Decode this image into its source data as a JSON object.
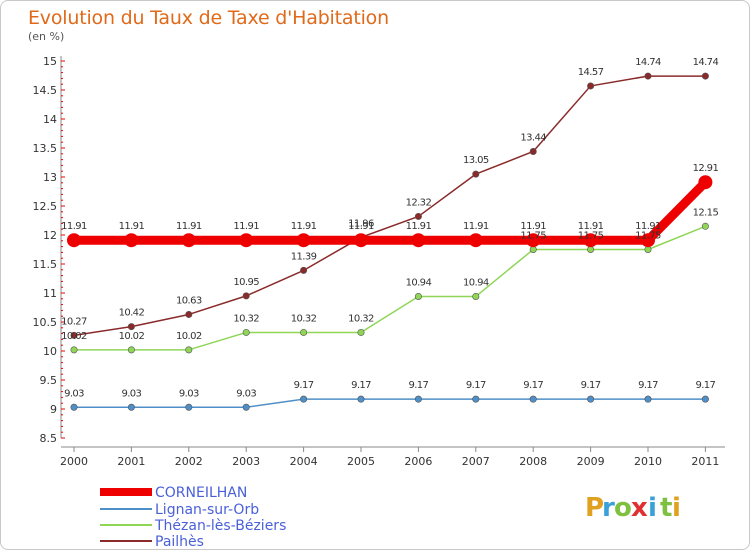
{
  "chart_data": {
    "type": "line",
    "title": "Evolution du Taux de Taxe d'Habitation",
    "subtitle": "(en %)",
    "x": [
      "2000",
      "2001",
      "2002",
      "2003",
      "2004",
      "2005",
      "2006",
      "2007",
      "2008",
      "2009",
      "2010",
      "2011"
    ],
    "ylim": [
      8.5,
      15
    ],
    "yticks": [
      "8.5",
      "9",
      "9.5",
      "10",
      "10.5",
      "11",
      "11.5",
      "12",
      "12.5",
      "13",
      "13.5",
      "14",
      "14.5",
      "15"
    ],
    "grid": false,
    "legend_position": "bottom-left",
    "series": [
      {
        "name": "CORNEILHAN",
        "color": "#ee0000",
        "values": [
          11.91,
          11.91,
          11.91,
          11.91,
          11.91,
          11.91,
          11.91,
          11.91,
          11.91,
          11.91,
          11.91,
          12.91
        ],
        "labels": [
          "11.91",
          "11.91",
          "11.91",
          "11.91",
          "11.91",
          "11.91",
          "11.91",
          "11.91",
          "11.91",
          "11.91",
          "11.91",
          "12.91"
        ]
      },
      {
        "name": "Lignan-sur-Orb",
        "color": "#4f8fc8",
        "values": [
          9.03,
          9.03,
          9.03,
          9.03,
          9.17,
          9.17,
          9.17,
          9.17,
          9.17,
          9.17,
          9.17,
          9.17
        ],
        "labels": [
          "9.03",
          "9.03",
          "9.03",
          "9.03",
          "9.17",
          "9.17",
          "9.17",
          "9.17",
          "9.17",
          "9.17",
          "9.17",
          "9.17"
        ]
      },
      {
        "name": "Thézan-lès-Béziers",
        "color": "#8fd657",
        "values": [
          10.02,
          10.02,
          10.02,
          10.32,
          10.32,
          10.32,
          10.94,
          10.94,
          11.75,
          11.75,
          11.75,
          12.15
        ],
        "labels": [
          "10.02",
          "10.02",
          "10.02",
          "10.32",
          "10.32",
          "10.32",
          "10.94",
          "10.94",
          "11.75",
          "11.75",
          "11.75",
          "12.15"
        ]
      },
      {
        "name": "Pailhès",
        "color": "#8a2a2a",
        "values": [
          10.27,
          10.42,
          10.63,
          10.95,
          11.39,
          11.96,
          12.32,
          13.05,
          13.44,
          14.57,
          14.74,
          14.74
        ],
        "labels": [
          "10.27",
          "10.42",
          "10.63",
          "10.95",
          "11.39",
          "11.96",
          "12.32",
          "13.05",
          "13.44",
          "14.57",
          "14.74",
          "14.74"
        ]
      }
    ]
  },
  "logo": {
    "letters": [
      "P",
      "r",
      "o",
      "x",
      "i",
      "t",
      "i"
    ],
    "colors": [
      "#e0a020",
      "#3aa0d8",
      "#80c040",
      "#e03030",
      "#3aa0d8",
      "#80c040",
      "#e0a020"
    ]
  }
}
